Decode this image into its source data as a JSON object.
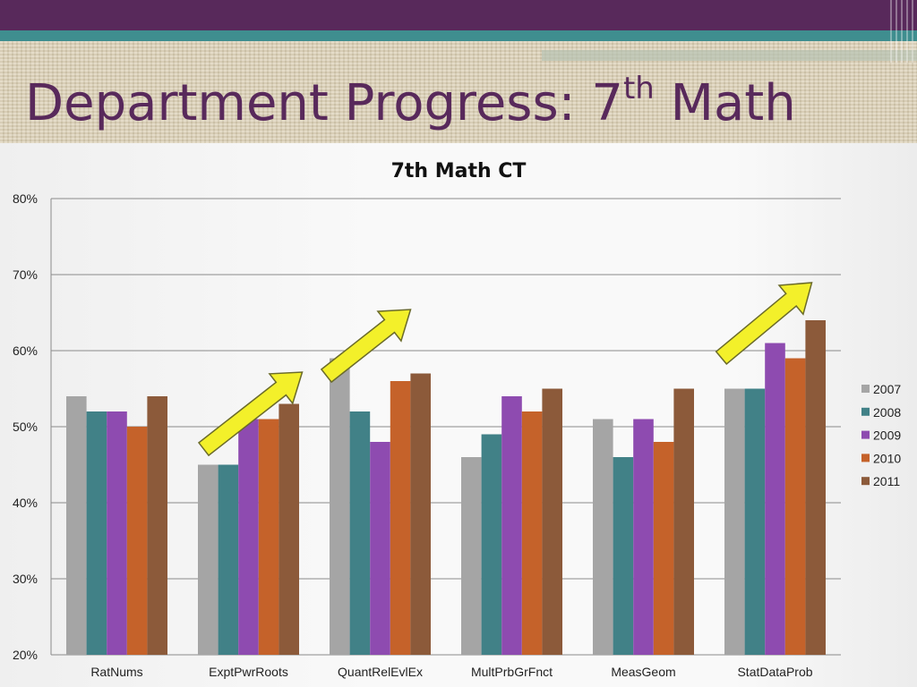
{
  "slide": {
    "title_prefix": "Department Progress: 7",
    "title_superscript": "th",
    "title_suffix": " Math"
  },
  "colors": {
    "top_band": "#58295b",
    "teal_band": "#3f8e8f",
    "title": "#58295b",
    "arrow_fill": "#f3f02a"
  },
  "chart_data": {
    "type": "bar",
    "title": "7th Math CT",
    "categories": [
      "RatNums",
      "ExptPwrRoots",
      "QuantRelEvlEx",
      "MultPrbGrFnct",
      "MeasGeom",
      "StatDataProb"
    ],
    "series": [
      {
        "name": "2007",
        "color": "#a5a5a5",
        "values": [
          54,
          45,
          59,
          46,
          51,
          55
        ]
      },
      {
        "name": "2008",
        "color": "#418187",
        "values": [
          52,
          45,
          52,
          49,
          46,
          55
        ]
      },
      {
        "name": "2009",
        "color": "#8e4bb0",
        "values": [
          52,
          51,
          48,
          54,
          51,
          61
        ]
      },
      {
        "name": "2010",
        "color": "#c5622a",
        "values": [
          50,
          51,
          56,
          52,
          48,
          59
        ]
      },
      {
        "name": "2011",
        "color": "#8c5a3a",
        "values": [
          54,
          53,
          57,
          55,
          55,
          64
        ]
      }
    ],
    "ylim": [
      20,
      80
    ],
    "yticks": [
      "20%",
      "30%",
      "40%",
      "50%",
      "60%",
      "70%",
      "80%"
    ],
    "ytick_values": [
      20,
      30,
      40,
      50,
      60,
      70,
      80
    ],
    "grid": true,
    "legend_position": "right",
    "annotations": {
      "arrows_over_categories": [
        "ExptPwrRoots",
        "QuantRelEvlEx",
        "StatDataProb"
      ],
      "arrow_direction": "up-right"
    }
  }
}
